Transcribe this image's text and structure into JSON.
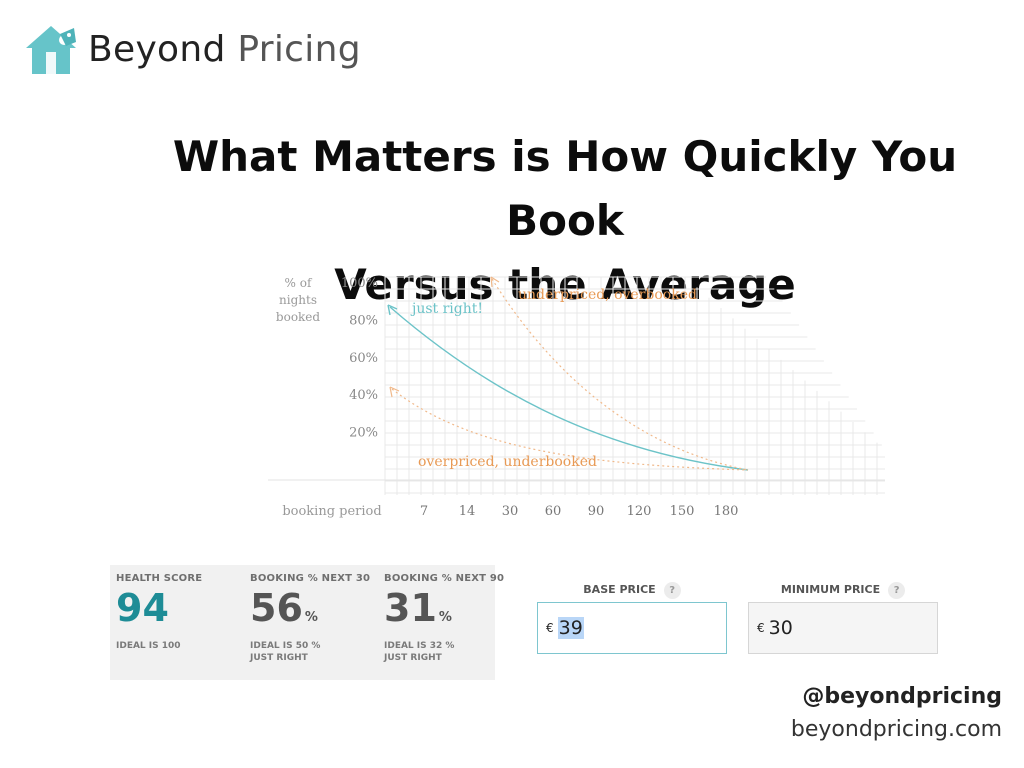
{
  "brand": {
    "name_bold": "Beyond",
    "name_light": "Pricing"
  },
  "headline": {
    "line1": "What Matters is How Quickly You Book",
    "line2": "Versus the Average"
  },
  "chart_data": {
    "type": "line",
    "ylabel_lines": [
      "% of",
      "nights",
      "booked"
    ],
    "xlabel": "booking period",
    "y_ticks": [
      "100%",
      "80%",
      "60%",
      "40%",
      "20%"
    ],
    "x_ticks": [
      "7",
      "14",
      "30",
      "60",
      "90",
      "120",
      "150",
      "180"
    ],
    "annotations": [
      "just right!",
      "underpriced, overbooked",
      "overpriced, underbooked"
    ],
    "series": [
      {
        "name": "just right!",
        "color": "#6cc3c8",
        "style": "solid"
      },
      {
        "name": "underpriced, overbooked",
        "color": "#f0b98b",
        "style": "dotted"
      },
      {
        "name": "overpriced, underbooked",
        "color": "#f0b98b",
        "style": "dotted"
      }
    ],
    "ylim": [
      0,
      100
    ],
    "grid": true
  },
  "health": {
    "metrics": [
      {
        "label": "HEALTH SCORE",
        "value": "94",
        "pct": "",
        "color": "#1e8c96",
        "sub1": "IDEAL IS 100",
        "sub2": ""
      },
      {
        "label": "BOOKING % NEXT 30",
        "value": "56",
        "pct": "%",
        "color": "#555555",
        "sub1": "IDEAL IS 50 %",
        "sub2": "JUST RIGHT"
      },
      {
        "label": "BOOKING % NEXT 90",
        "value": "31",
        "pct": "%",
        "color": "#555555",
        "sub1": "IDEAL IS 32 %",
        "sub2": "JUST RIGHT"
      }
    ]
  },
  "pricing": {
    "base": {
      "label": "BASE PRICE",
      "help": "?",
      "currency": "€",
      "value": "39"
    },
    "minimum": {
      "label": "MINIMUM PRICE",
      "help": "?",
      "currency": "€",
      "value": "30"
    }
  },
  "footer": {
    "handle": "@beyondpricing",
    "site": "beyondpricing.com"
  }
}
